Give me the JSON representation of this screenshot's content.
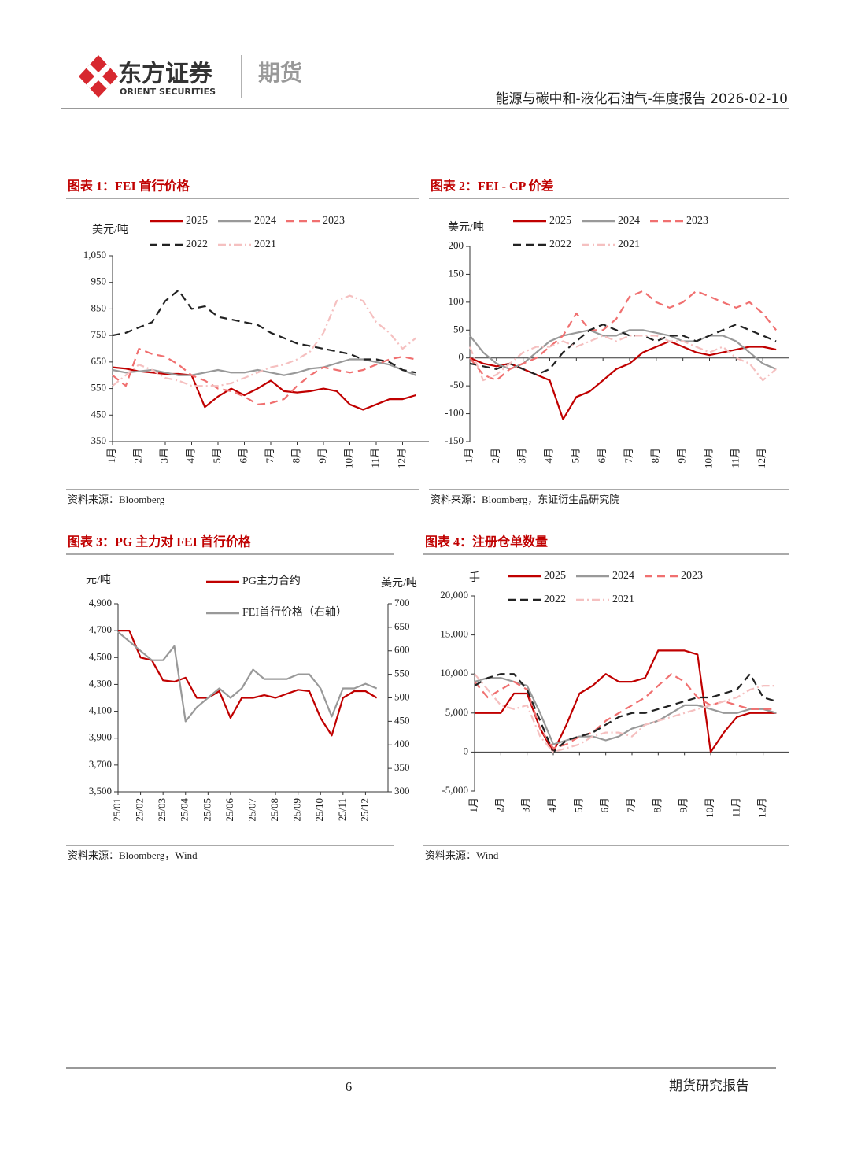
{
  "header": {
    "company": "东方证券",
    "company_en": "ORIENT SECURITIES",
    "division": "期货",
    "report": "能源与碳中和-液化石油气-年度报告 2026-02-10"
  },
  "chart_data": [
    {
      "type": "line",
      "title": "图表 1：FEI 首行价格",
      "y_label": "美元/吨",
      "source": "资料来源：Bloomberg",
      "x": [
        1,
        1.5,
        2,
        2.5,
        3,
        3.5,
        4,
        4.5,
        5,
        5.5,
        6,
        6.5,
        7,
        7.5,
        8,
        8.5,
        9,
        9.5,
        10,
        10.5,
        11,
        11.5,
        12,
        12.5
      ],
      "xlim": [
        1,
        13
      ],
      "xticks": [
        {
          "value": 1,
          "label": "1月"
        },
        {
          "value": 2,
          "label": "2月"
        },
        {
          "value": 3,
          "label": "3月"
        },
        {
          "value": 4,
          "label": "4月"
        },
        {
          "value": 5,
          "label": "5月"
        },
        {
          "value": 6,
          "label": "6月"
        },
        {
          "value": 7,
          "label": "7月"
        },
        {
          "value": 8,
          "label": "8月"
        },
        {
          "value": 9,
          "label": "9月"
        },
        {
          "value": 10,
          "label": "10月"
        },
        {
          "value": 11,
          "label": "11月"
        },
        {
          "value": 12,
          "label": "12月"
        }
      ],
      "ylim": [
        350,
        1050
      ],
      "yticks": [
        350,
        450,
        550,
        650,
        750,
        850,
        950,
        {
          "value": 1050,
          "label": "1,050"
        }
      ],
      "series": [
        {
          "name": "2025",
          "color": "#c00000",
          "style": "solid",
          "values": [
            630,
            625,
            615,
            610,
            605,
            605,
            600,
            480,
            520,
            550,
            525,
            550,
            580,
            540,
            535,
            540,
            550,
            540,
            490,
            470,
            490,
            510,
            510,
            525
          ]
        },
        {
          "name": "2024",
          "color": "#999999",
          "style": "solid",
          "values": [
            620,
            610,
            615,
            620,
            610,
            600,
            600,
            610,
            620,
            610,
            610,
            620,
            610,
            600,
            610,
            625,
            630,
            645,
            660,
            660,
            650,
            640,
            620,
            600
          ]
        },
        {
          "name": "2023",
          "color": "#f07070",
          "style": "dashed",
          "values": [
            600,
            560,
            700,
            680,
            670,
            640,
            600,
            580,
            550,
            540,
            520,
            490,
            495,
            510,
            560,
            600,
            630,
            620,
            610,
            620,
            640,
            660,
            670,
            660
          ]
        },
        {
          "name": "2022",
          "color": "#222222",
          "style": "dashed",
          "values": [
            750,
            760,
            780,
            800,
            880,
            920,
            850,
            860,
            820,
            810,
            800,
            790,
            760,
            740,
            720,
            710,
            700,
            690,
            680,
            660,
            660,
            650,
            620,
            610
          ]
        },
        {
          "name": "2021",
          "color": "#f5c0c0",
          "style": "dashdot",
          "values": [
            560,
            600,
            640,
            620,
            590,
            580,
            560,
            560,
            560,
            570,
            590,
            610,
            630,
            640,
            660,
            690,
            760,
            880,
            900,
            880,
            800,
            760,
            700,
            740
          ]
        }
      ]
    },
    {
      "type": "line",
      "title": "图表 2：FEI - CP 价差",
      "y_label": "美元/吨",
      "source": "资料来源：Bloomberg，东证衍生品研究院",
      "x": [
        1,
        1.5,
        2,
        2.5,
        3,
        3.5,
        4,
        4.5,
        5,
        5.5,
        6,
        6.5,
        7,
        7.5,
        8,
        8.5,
        9,
        9.5,
        10,
        10.5,
        11,
        11.5,
        12,
        12.5
      ],
      "xlim": [
        1,
        13
      ],
      "xticks": [
        {
          "value": 1,
          "label": "1月"
        },
        {
          "value": 2,
          "label": "2月"
        },
        {
          "value": 3,
          "label": "3月"
        },
        {
          "value": 4,
          "label": "4月"
        },
        {
          "value": 5,
          "label": "5月"
        },
        {
          "value": 6,
          "label": "6月"
        },
        {
          "value": 7,
          "label": "7月"
        },
        {
          "value": 8,
          "label": "8月"
        },
        {
          "value": 9,
          "label": "9月"
        },
        {
          "value": 10,
          "label": "10月"
        },
        {
          "value": 11,
          "label": "11月"
        },
        {
          "value": 12,
          "label": "12月"
        }
      ],
      "ylim": [
        -150,
        200
      ],
      "yticks": [
        -150,
        -100,
        -50,
        0,
        50,
        100,
        150,
        200
      ],
      "series": [
        {
          "name": "2025",
          "color": "#c00000",
          "style": "solid",
          "values": [
            0,
            -10,
            -15,
            -10,
            -20,
            -30,
            -40,
            -110,
            -70,
            -60,
            -40,
            -20,
            -10,
            10,
            20,
            30,
            20,
            10,
            5,
            10,
            15,
            20,
            20,
            15
          ]
        },
        {
          "name": "2024",
          "color": "#999999",
          "style": "solid",
          "values": [
            40,
            10,
            -10,
            -20,
            -10,
            10,
            30,
            40,
            45,
            50,
            40,
            40,
            50,
            50,
            45,
            40,
            30,
            30,
            40,
            40,
            30,
            10,
            -10,
            -20
          ]
        },
        {
          "name": "2023",
          "color": "#f07070",
          "style": "dashed",
          "values": [
            0,
            -30,
            -40,
            -20,
            -10,
            0,
            20,
            40,
            80,
            50,
            50,
            70,
            110,
            120,
            100,
            90,
            100,
            120,
            110,
            100,
            90,
            100,
            80,
            50
          ]
        },
        {
          "name": "2022",
          "color": "#222222",
          "style": "dashed",
          "values": [
            -10,
            -15,
            -20,
            -10,
            -20,
            -30,
            -20,
            10,
            30,
            50,
            60,
            50,
            40,
            40,
            30,
            40,
            40,
            30,
            40,
            50,
            60,
            50,
            40,
            30
          ]
        },
        {
          "name": "2021",
          "color": "#f5c0c0",
          "style": "dashdot",
          "values": [
            20,
            -40,
            -30,
            -10,
            10,
            20,
            20,
            30,
            20,
            30,
            40,
            30,
            40,
            40,
            40,
            30,
            30,
            20,
            10,
            20,
            0,
            -10,
            -40,
            -20
          ]
        }
      ]
    },
    {
      "type": "line",
      "title": "图表 3：PG 主力对 FEI 首行价格",
      "y_label": "元/吨",
      "y2_label": "美元/吨",
      "source": "资料来源：Bloomberg，Wind",
      "x": [
        1,
        1.5,
        2,
        2.5,
        3,
        3.5,
        4,
        4.5,
        5,
        5.5,
        6,
        6.5,
        7,
        7.5,
        8,
        8.5,
        9,
        9.5,
        10,
        10.5,
        11,
        11.5,
        12,
        12.5
      ],
      "xlim": [
        1,
        13
      ],
      "xticks": [
        {
          "value": 1,
          "label": "25/01"
        },
        {
          "value": 2,
          "label": "25/02"
        },
        {
          "value": 3,
          "label": "25/03"
        },
        {
          "value": 4,
          "label": "25/04"
        },
        {
          "value": 5,
          "label": "25/05"
        },
        {
          "value": 6,
          "label": "25/06"
        },
        {
          "value": 7,
          "label": "25/07"
        },
        {
          "value": 8,
          "label": "25/08"
        },
        {
          "value": 9,
          "label": "25/09"
        },
        {
          "value": 10,
          "label": "25/10"
        },
        {
          "value": 11,
          "label": "25/11"
        },
        {
          "value": 12,
          "label": "25/12"
        }
      ],
      "ylim": [
        3500,
        4900
      ],
      "yticks": [
        {
          "value": 3500,
          "label": "3,500"
        },
        {
          "value": 3700,
          "label": "3,700"
        },
        {
          "value": 3900,
          "label": "3,900"
        },
        {
          "value": 4100,
          "label": "4,100"
        },
        {
          "value": 4300,
          "label": "4,300"
        },
        {
          "value": 4500,
          "label": "4,500"
        },
        {
          "value": 4700,
          "label": "4,700"
        },
        {
          "value": 4900,
          "label": "4,900"
        }
      ],
      "y2lim": [
        300,
        700
      ],
      "y2ticks": [
        300,
        350,
        400,
        450,
        500,
        550,
        600,
        650,
        700
      ],
      "series": [
        {
          "name": "PG主力合约",
          "color": "#c00000",
          "style": "solid",
          "values": [
            4700,
            4700,
            4500,
            4480,
            4330,
            4320,
            4350,
            4200,
            4200,
            4250,
            4050,
            4200,
            4200,
            4220,
            4200,
            4230,
            4260,
            4250,
            4050,
            3920,
            4200,
            4250,
            4250,
            4200
          ]
        },
        {
          "name": "FEI首行价格（右轴）",
          "color": "#999999",
          "style": "solid",
          "axis": "y2",
          "values": [
            640,
            620,
            600,
            580,
            580,
            610,
            450,
            480,
            500,
            520,
            500,
            520,
            560,
            540,
            540,
            540,
            550,
            550,
            520,
            460,
            520,
            520,
            530,
            520
          ]
        }
      ]
    },
    {
      "type": "line",
      "title": "图表 4：注册仓单数量",
      "y_label": "手",
      "source": "资料来源：Wind",
      "x": [
        1,
        1.5,
        2,
        2.5,
        3,
        3.5,
        4,
        4.5,
        5,
        5.5,
        6,
        6.5,
        7,
        7.5,
        8,
        8.5,
        9,
        9.5,
        10,
        10.5,
        11,
        11.5,
        12,
        12.5
      ],
      "xlim": [
        1,
        13
      ],
      "xticks": [
        {
          "value": 1,
          "label": "1月"
        },
        {
          "value": 2,
          "label": "2月"
        },
        {
          "value": 3,
          "label": "3月"
        },
        {
          "value": 4,
          "label": "4月"
        },
        {
          "value": 5,
          "label": "5月"
        },
        {
          "value": 6,
          "label": "6月"
        },
        {
          "value": 7,
          "label": "7月"
        },
        {
          "value": 8,
          "label": "8月"
        },
        {
          "value": 9,
          "label": "9月"
        },
        {
          "value": 10,
          "label": "10月"
        },
        {
          "value": 11,
          "label": "11月"
        },
        {
          "value": 12,
          "label": "12月"
        }
      ],
      "ylim": [
        -5000,
        20000
      ],
      "yticks": [
        {
          "value": -5000,
          "label": "-5,000"
        },
        0,
        {
          "value": 5000,
          "label": "5,000"
        },
        {
          "value": 10000,
          "label": "10,000"
        },
        {
          "value": 15000,
          "label": "15,000"
        },
        {
          "value": 20000,
          "label": "20,000"
        }
      ],
      "series": [
        {
          "name": "2025",
          "color": "#c00000",
          "style": "solid",
          "values": [
            5000,
            5000,
            5000,
            7500,
            7500,
            3000,
            0,
            3500,
            7500,
            8500,
            10000,
            9000,
            9000,
            9500,
            13000,
            13000,
            13000,
            12500,
            0,
            2500,
            4500,
            5000,
            5000,
            5000
          ]
        },
        {
          "name": "2024",
          "color": "#999999",
          "style": "solid",
          "values": [
            9000,
            9500,
            9500,
            9000,
            8500,
            5000,
            1000,
            1500,
            2000,
            2000,
            1500,
            2000,
            3000,
            3500,
            4000,
            5000,
            6000,
            6000,
            5500,
            5000,
            5000,
            5500,
            5500,
            5000
          ]
        },
        {
          "name": "2023",
          "color": "#f07070",
          "style": "dashed",
          "values": [
            9000,
            7000,
            8000,
            9000,
            8000,
            3000,
            500,
            1000,
            2000,
            2500,
            4000,
            5000,
            6000,
            7000,
            8500,
            10000,
            9000,
            7000,
            6000,
            6500,
            6000,
            5500,
            5500,
            5500
          ]
        },
        {
          "name": "2022",
          "color": "#222222",
          "style": "dashed",
          "values": [
            8500,
            9500,
            10000,
            10000,
            8000,
            4000,
            0,
            1500,
            2000,
            2500,
            3500,
            4500,
            5000,
            5000,
            5500,
            6000,
            6500,
            7000,
            7000,
            7500,
            8000,
            10000,
            7000,
            6500
          ]
        },
        {
          "name": "2021",
          "color": "#f5c0c0",
          "style": "dashdot",
          "values": [
            10000,
            8000,
            6000,
            5500,
            6000,
            2000,
            0,
            500,
            1000,
            2000,
            2500,
            2500,
            2000,
            3500,
            4000,
            4500,
            5000,
            5500,
            6000,
            6500,
            7000,
            8000,
            8500,
            8500
          ]
        }
      ]
    }
  ],
  "footer": {
    "page": 6,
    "label": "期货研究报告"
  }
}
